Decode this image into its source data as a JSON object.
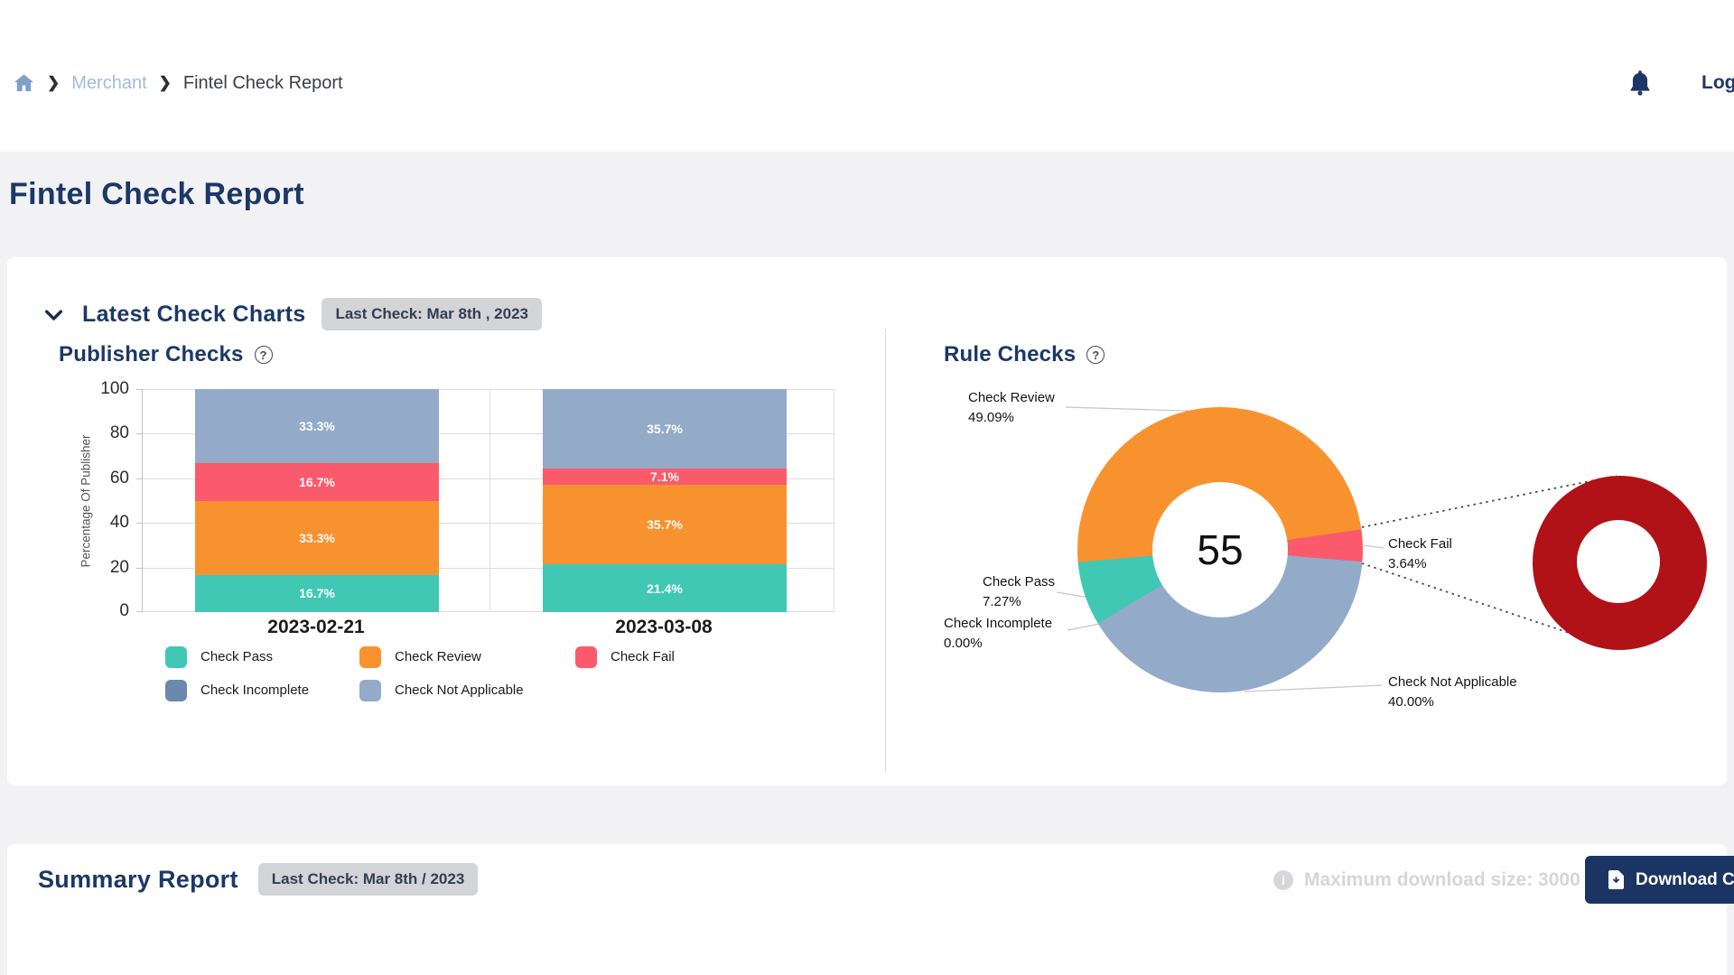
{
  "topbar": {
    "breadcrumb": {
      "items": [
        "Merchant",
        "Fintel Check Report"
      ]
    },
    "logout_label": "Log"
  },
  "page_title": "Fintel Check Report",
  "latest_check_charts": {
    "section_title": "Latest Check Charts",
    "last_check_badge": "Last Check: Mar 8th , 2023"
  },
  "summary_report": {
    "section_title": "Summary Report",
    "last_check_badge": "Last Check: Mar 8th / 2023",
    "max_download_note": "Maximum download size: 3000",
    "download_button_label": "Download CSV"
  },
  "colors": {
    "navy": "#1b3867",
    "check_pass": "#41c8b4",
    "check_review": "#f8922f",
    "check_fail": "#fb5a6c",
    "check_incomplete": "#6b88af",
    "check_not_applicable": "#93aac9",
    "fail_zoom_dark_red": "#b01217",
    "button_navy": "#1a3464",
    "badge_gray": "#d3d4d7"
  },
  "chart_data": [
    {
      "type": "bar",
      "stacked": true,
      "title": "Publisher Checks",
      "ylabel": "Percentage Of Publisher",
      "ylim": [
        0,
        100
      ],
      "yticks": [
        0,
        20,
        40,
        60,
        80,
        100
      ],
      "grid": true,
      "legend_position": "bottom",
      "categories": [
        "2023-02-21",
        "2023-03-08"
      ],
      "series": [
        {
          "name": "Check Pass",
          "color": "#41c8b4",
          "values": [
            16.7,
            21.4
          ]
        },
        {
          "name": "Check Review",
          "color": "#f8922f",
          "values": [
            33.3,
            35.7
          ]
        },
        {
          "name": "Check Fail",
          "color": "#fb5a6c",
          "values": [
            16.7,
            7.1
          ]
        },
        {
          "name": "Check Not Applicable",
          "color": "#93aac9",
          "values": [
            33.3,
            35.7
          ]
        }
      ],
      "legend": [
        {
          "name": "Check Pass",
          "color": "#41c8b4"
        },
        {
          "name": "Check Review",
          "color": "#f8922f"
        },
        {
          "name": "Check Fail",
          "color": "#fb5a6c"
        },
        {
          "name": "Check Incomplete",
          "color": "#6b88af"
        },
        {
          "name": "Check Not Applicable",
          "color": "#93aac9"
        }
      ]
    },
    {
      "type": "pie",
      "donut": true,
      "title": "Rule Checks",
      "center_label": "55",
      "start_angle_deg": 265,
      "slices": [
        {
          "name": "Check Review",
          "value": 49.09,
          "color": "#f8922f"
        },
        {
          "name": "Check Fail",
          "value": 3.64,
          "color": "#fb5a6c"
        },
        {
          "name": "Check Not Applicable",
          "value": 40.0,
          "color": "#93aac9"
        },
        {
          "name": "Check Pass",
          "value": 7.27,
          "color": "#41c8b4"
        },
        {
          "name": "Check Incomplete",
          "value": 0.0,
          "color": "#6b88af"
        }
      ],
      "magnified_slice": {
        "name": "Check Fail",
        "color": "#b01217"
      }
    }
  ]
}
